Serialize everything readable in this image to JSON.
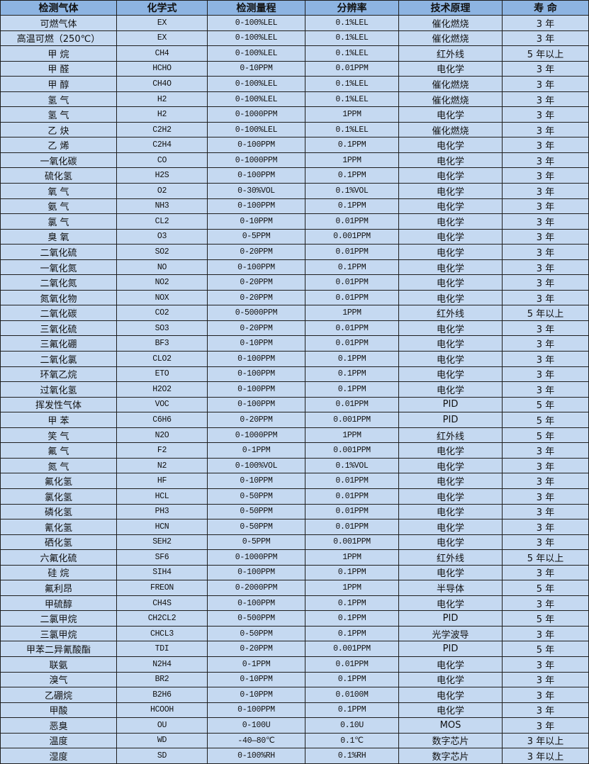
{
  "table": {
    "headers": [
      "检测气体",
      "化学式",
      "检测量程",
      "分辨率",
      "技术原理",
      "寿 命"
    ],
    "rows": [
      [
        "可燃气体",
        "EX",
        "0-100%LEL",
        "0.1%LEL",
        "催化燃烧",
        "3 年"
      ],
      [
        "高温可燃（250℃）",
        "EX",
        "0-100%LEL",
        "0.1%LEL",
        "催化燃烧",
        "3 年"
      ],
      [
        "甲 烷",
        "CH4",
        "0-100%LEL",
        "0.1%LEL",
        "红外线",
        "5 年以上"
      ],
      [
        "甲 醛",
        "HCHO",
        "0-10PPM",
        "0.01PPM",
        "电化学",
        "3 年"
      ],
      [
        "甲 醇",
        "CH4O",
        "0-100%LEL",
        "0.1%LEL",
        "催化燃烧",
        "3 年"
      ],
      [
        "氢 气",
        "H2",
        "0-100%LEL",
        "0.1%LEL",
        "催化燃烧",
        "3 年"
      ],
      [
        "氢 气",
        "H2",
        "0-1000PPM",
        "1PPM",
        "电化学",
        "3 年"
      ],
      [
        "乙 炔",
        "C2H2",
        "0-100%LEL",
        "0.1%LEL",
        "催化燃烧",
        "3 年"
      ],
      [
        "乙 烯",
        "C2H4",
        "0-100PPM",
        "0.1PPM",
        "电化学",
        "3 年"
      ],
      [
        "一氧化碳",
        "CO",
        "0-1000PPM",
        "1PPM",
        "电化学",
        "3 年"
      ],
      [
        "硫化氢",
        "H2S",
        "0-100PPM",
        "0.1PPM",
        "电化学",
        "3 年"
      ],
      [
        "氧 气",
        "O2",
        "0-30%VOL",
        "0.1%VOL",
        "电化学",
        "3 年"
      ],
      [
        "氨 气",
        "NH3",
        "0-100PPM",
        "0.1PPM",
        "电化学",
        "3 年"
      ],
      [
        "氯 气",
        "CL2",
        "0-10PPM",
        "0.01PPM",
        "电化学",
        "3 年"
      ],
      [
        "臭 氧",
        "O3",
        "0-5PPM",
        "0.001PPM",
        "电化学",
        "3 年"
      ],
      [
        "二氧化硫",
        "SO2",
        "0-20PPM",
        "0.01PPM",
        "电化学",
        "3 年"
      ],
      [
        "一氧化氮",
        "NO",
        "0-100PPM",
        "0.1PPM",
        "电化学",
        "3 年"
      ],
      [
        "二氧化氮",
        "NO2",
        "0-20PPM",
        "0.01PPM",
        "电化学",
        "3 年"
      ],
      [
        "氮氧化物",
        "NOX",
        "0-20PPM",
        "0.01PPM",
        "电化学",
        "3 年"
      ],
      [
        "二氧化碳",
        "CO2",
        "0-5000PPM",
        "1PPM",
        "红外线",
        "5 年以上"
      ],
      [
        "三氧化硫",
        "SO3",
        "0-20PPM",
        "0.01PPM",
        "电化学",
        "3 年"
      ],
      [
        "三氟化硼",
        "BF3",
        "0-10PPM",
        "0.01PPM",
        "电化学",
        "3 年"
      ],
      [
        "二氧化氯",
        "CLO2",
        "0-100PPM",
        "0.1PPM",
        "电化学",
        "3 年"
      ],
      [
        "环氧乙烷",
        "ETO",
        "0-100PPM",
        "0.1PPM",
        "电化学",
        "3 年"
      ],
      [
        "过氧化氢",
        "H2O2",
        "0-100PPM",
        "0.1PPM",
        "电化学",
        "3 年"
      ],
      [
        "挥发性气体",
        "VOC",
        "0-100PPM",
        "0.01PPM",
        "PID",
        "5 年"
      ],
      [
        "甲 苯",
        "C6H6",
        "0-20PPM",
        "0.001PPM",
        "PID",
        "5 年"
      ],
      [
        "笑 气",
        "N2O",
        "0-1000PPM",
        "1PPM",
        "红外线",
        "5 年"
      ],
      [
        "氟 气",
        "F2",
        "0-1PPM",
        "0.001PPM",
        "电化学",
        "3 年"
      ],
      [
        "氮 气",
        "N2",
        "0-100%VOL",
        "0.1%VOL",
        "电化学",
        "3 年"
      ],
      [
        "氟化氢",
        "HF",
        "0-10PPM",
        "0.01PPM",
        "电化学",
        "3 年"
      ],
      [
        "氯化氢",
        "HCL",
        "0-50PPM",
        "0.01PPM",
        "电化学",
        "3 年"
      ],
      [
        "磷化氢",
        "PH3",
        "0-50PPM",
        "0.01PPM",
        "电化学",
        "3 年"
      ],
      [
        "氰化氢",
        "HCN",
        "0-50PPM",
        "0.01PPM",
        "电化学",
        "3 年"
      ],
      [
        "硒化氢",
        "SEH2",
        "0-5PPM",
        "0.001PPM",
        "电化学",
        "3 年"
      ],
      [
        "六氟化硫",
        "SF6",
        "0-1000PPM",
        "1PPM",
        "红外线",
        "5 年以上"
      ],
      [
        "硅 烷",
        "SIH4",
        "0-100PPM",
        "0.1PPM",
        "电化学",
        "3 年"
      ],
      [
        "氟利昂",
        "FREON",
        "0-2000PPM",
        "1PPM",
        "半导体",
        "5 年"
      ],
      [
        "甲硫醇",
        "CH4S",
        "0-100PPM",
        "0.1PPM",
        "电化学",
        "3 年"
      ],
      [
        "二氯甲烷",
        "CH2CL2",
        "0-500PPM",
        "0.1PPM",
        "PID",
        "5 年"
      ],
      [
        "三氯甲烷",
        "CHCL3",
        "0-50PPM",
        "0.1PPM",
        "光学波导",
        "3 年"
      ],
      [
        "甲苯二异氰酸酯",
        "TDI",
        "0-20PPM",
        "0.001PPM",
        "PID",
        "5 年"
      ],
      [
        "联氨",
        "N2H4",
        "0-1PPM",
        "0.01PPM",
        "电化学",
        "3 年"
      ],
      [
        "溴气",
        "BR2",
        "0-10PPM",
        "0.1PPM",
        "电化学",
        "3 年"
      ],
      [
        "乙硼烷",
        "B2H6",
        "0-10PPM",
        "0.0100M",
        "电化学",
        "3 年"
      ],
      [
        "甲酸",
        "HCOOH",
        "0-100PPM",
        "0.1PPM",
        "电化学",
        "3 年"
      ],
      [
        "恶臭",
        "OU",
        "0-100U",
        "0.10U",
        "MOS",
        "3 年"
      ],
      [
        "温度",
        "WD",
        "-40—80℃",
        "0.1℃",
        "数字芯片",
        "3 年以上"
      ],
      [
        "湿度",
        "SD",
        "0-100%RH",
        "0.1%RH",
        "数字芯片",
        "3 年以上"
      ]
    ]
  },
  "colors": {
    "header_bg": "#8db4e2",
    "row_bg": "#c5d9f1",
    "border": "#1f1f1f"
  }
}
